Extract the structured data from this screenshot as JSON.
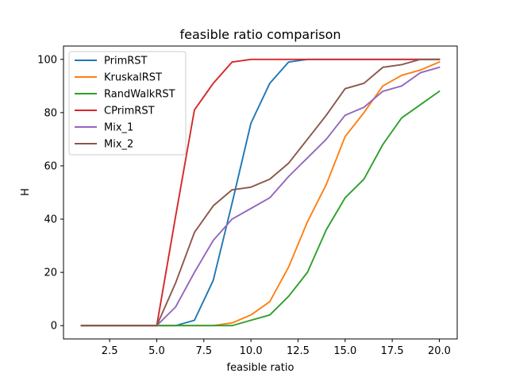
{
  "chart_data": {
    "type": "line",
    "title": "feasible ratio comparison",
    "xlabel": "feasible ratio",
    "ylabel": "H",
    "xlim": [
      0.05,
      20.95
    ],
    "ylim": [
      -5,
      105
    ],
    "xticks": [
      2.5,
      5.0,
      7.5,
      10.0,
      12.5,
      15.0,
      17.5,
      20.0
    ],
    "xtick_labels": [
      "2.5",
      "5.0",
      "7.5",
      "10.0",
      "12.5",
      "15.0",
      "17.5",
      "20.0"
    ],
    "yticks": [
      0,
      20,
      40,
      60,
      80,
      100
    ],
    "ytick_labels": [
      "0",
      "20",
      "40",
      "60",
      "80",
      "100"
    ],
    "grid": false,
    "legend_position": "top-left",
    "x": [
      1,
      2,
      3,
      4,
      5,
      6,
      7,
      8,
      9,
      10,
      11,
      12,
      13,
      14,
      15,
      16,
      17,
      18,
      19,
      20
    ],
    "series": [
      {
        "name": "PrimRST",
        "color": "#1f77b4",
        "values": [
          0,
          0,
          0,
          0,
          0,
          0,
          2,
          17,
          46,
          76,
          91,
          99,
          100,
          100,
          100,
          100,
          100,
          100,
          100,
          100
        ]
      },
      {
        "name": "KruskalRST",
        "color": "#ff7f0e",
        "values": [
          0,
          0,
          0,
          0,
          0,
          0,
          0,
          0,
          1,
          4,
          9,
          22,
          39,
          53,
          71,
          80,
          90,
          94,
          96,
          99
        ]
      },
      {
        "name": "RandWalkRST",
        "color": "#2ca02c",
        "values": [
          0,
          0,
          0,
          0,
          0,
          0,
          0,
          0,
          0,
          2,
          4,
          11,
          20,
          36,
          48,
          55,
          68,
          78,
          83,
          88
        ]
      },
      {
        "name": "CPrimRST",
        "color": "#d62728",
        "values": [
          0,
          0,
          0,
          0,
          0,
          41,
          81,
          91,
          99,
          100,
          100,
          100,
          100,
          100,
          100,
          100,
          100,
          100,
          100,
          100
        ]
      },
      {
        "name": "Mix_1",
        "color": "#9467bd",
        "values": [
          0,
          0,
          0,
          0,
          0,
          7,
          20,
          32,
          40,
          44,
          48,
          56,
          63,
          70,
          79,
          82,
          88,
          90,
          95,
          97
        ]
      },
      {
        "name": "Mix_2",
        "color": "#8c564b",
        "values": [
          0,
          0,
          0,
          0,
          0,
          16,
          35,
          45,
          51,
          52,
          55,
          61,
          70,
          79,
          89,
          91,
          97,
          98,
          100,
          100
        ]
      }
    ]
  }
}
